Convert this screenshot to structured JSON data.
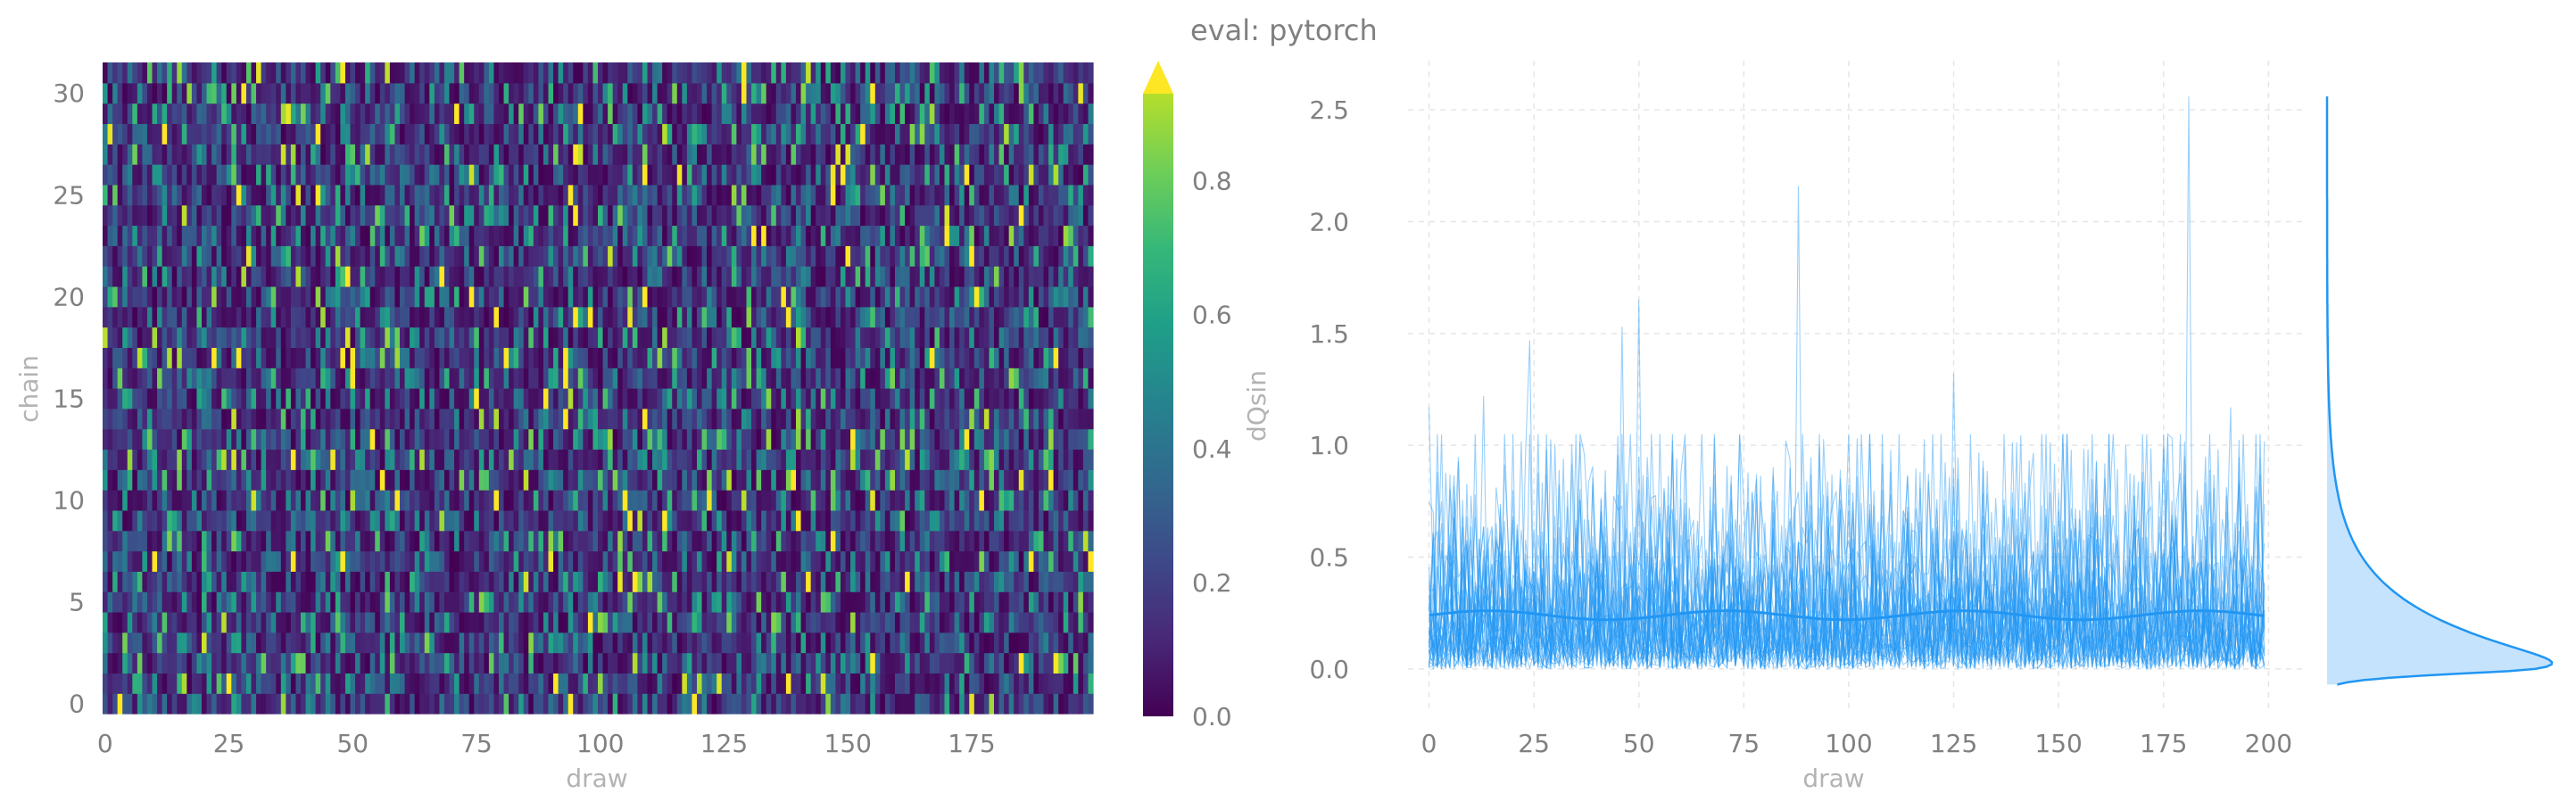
{
  "title": "eval: pytorch",
  "colors": {
    "trace": "#2196f3",
    "kde_fill": "#bbdefb",
    "tick_text": "#808080",
    "axis_label_text": "#b3b3b3",
    "grid": "#e6e6e6",
    "colormap": "viridis"
  },
  "chart_data": [
    {
      "type": "heatmap",
      "title": "",
      "xlabel": "draw",
      "ylabel": "chain",
      "x_ticks": [
        "0",
        "25",
        "50",
        "75",
        "100",
        "125",
        "150",
        "175"
      ],
      "y_ticks": [
        "0",
        "5",
        "10",
        "15",
        "20",
        "25",
        "30"
      ],
      "x_range": [
        0,
        199
      ],
      "y_range": [
        0,
        31
      ],
      "n_chains": 32,
      "n_draws": 200,
      "colorbar": {
        "label": "dQsin",
        "ticks": [
          "0.0",
          "0.2",
          "0.4",
          "0.6",
          "0.8"
        ],
        "range": [
          0.0,
          0.93
        ],
        "extend": "max",
        "colormap": "viridis"
      },
      "value_distribution": "values mostly 0.0–0.4, occasional values above 0.9"
    },
    {
      "type": "line",
      "title": "eval: pytorch",
      "xlabel": "draw",
      "ylabel": "",
      "x_ticks": [
        "0",
        "25",
        "50",
        "75",
        "100",
        "125",
        "150",
        "175",
        "200"
      ],
      "y_ticks": [
        "0.0",
        "0.5",
        "1.0",
        "1.5",
        "2.0",
        "2.5"
      ],
      "xlim": [
        -5,
        208
      ],
      "ylim": [
        -0.2,
        2.72
      ],
      "n_traces": 32,
      "n_draws": 200,
      "grid": true,
      "mean_level": 0.24,
      "peaks": [
        {
          "x": 0,
          "y": 1.17
        },
        {
          "x": 13,
          "y": 1.22
        },
        {
          "x": 24,
          "y": 1.47
        },
        {
          "x": 46,
          "y": 1.53
        },
        {
          "x": 50,
          "y": 1.65
        },
        {
          "x": 88,
          "y": 2.16
        },
        {
          "x": 125,
          "y": 1.32
        },
        {
          "x": 181,
          "y": 2.56
        },
        {
          "x": 191,
          "y": 1.17
        }
      ],
      "marginal_kde": {
        "orientation": "vertical",
        "mode": 0.02,
        "max": 2.56
      }
    }
  ]
}
